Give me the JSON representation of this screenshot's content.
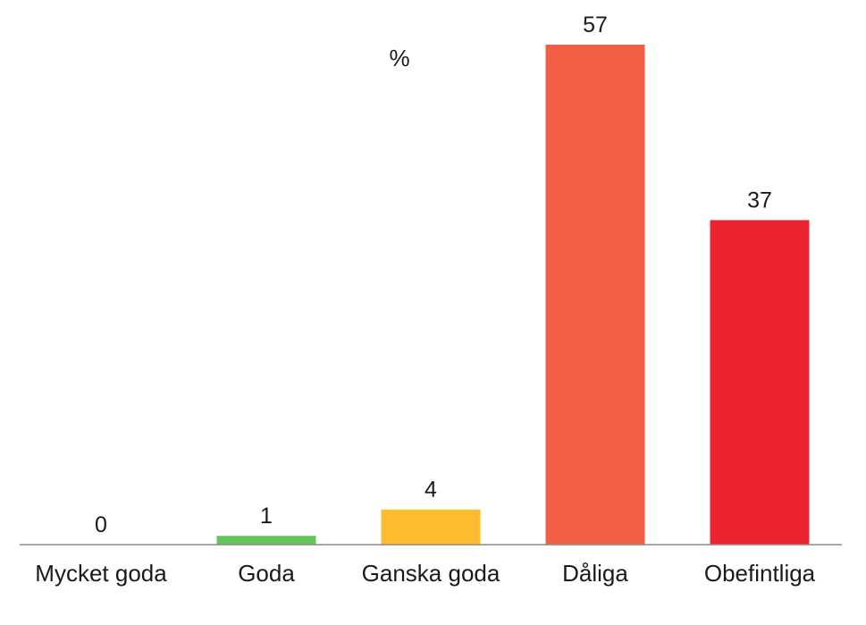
{
  "chart_data": {
    "type": "bar",
    "unit": "%",
    "categories": [
      "Mycket goda",
      "Goda",
      "Ganska goda",
      "Dåliga",
      "Obefintliga"
    ],
    "values": [
      0,
      1,
      4,
      57,
      37
    ],
    "colors": [
      "#62c45a",
      "#62c45a",
      "#fbbd2d",
      "#f25e44",
      "#eb2430"
    ],
    "axis_color": "#8a8a8a",
    "ylim": [
      0,
      57
    ],
    "grid": false,
    "legend": "none"
  }
}
